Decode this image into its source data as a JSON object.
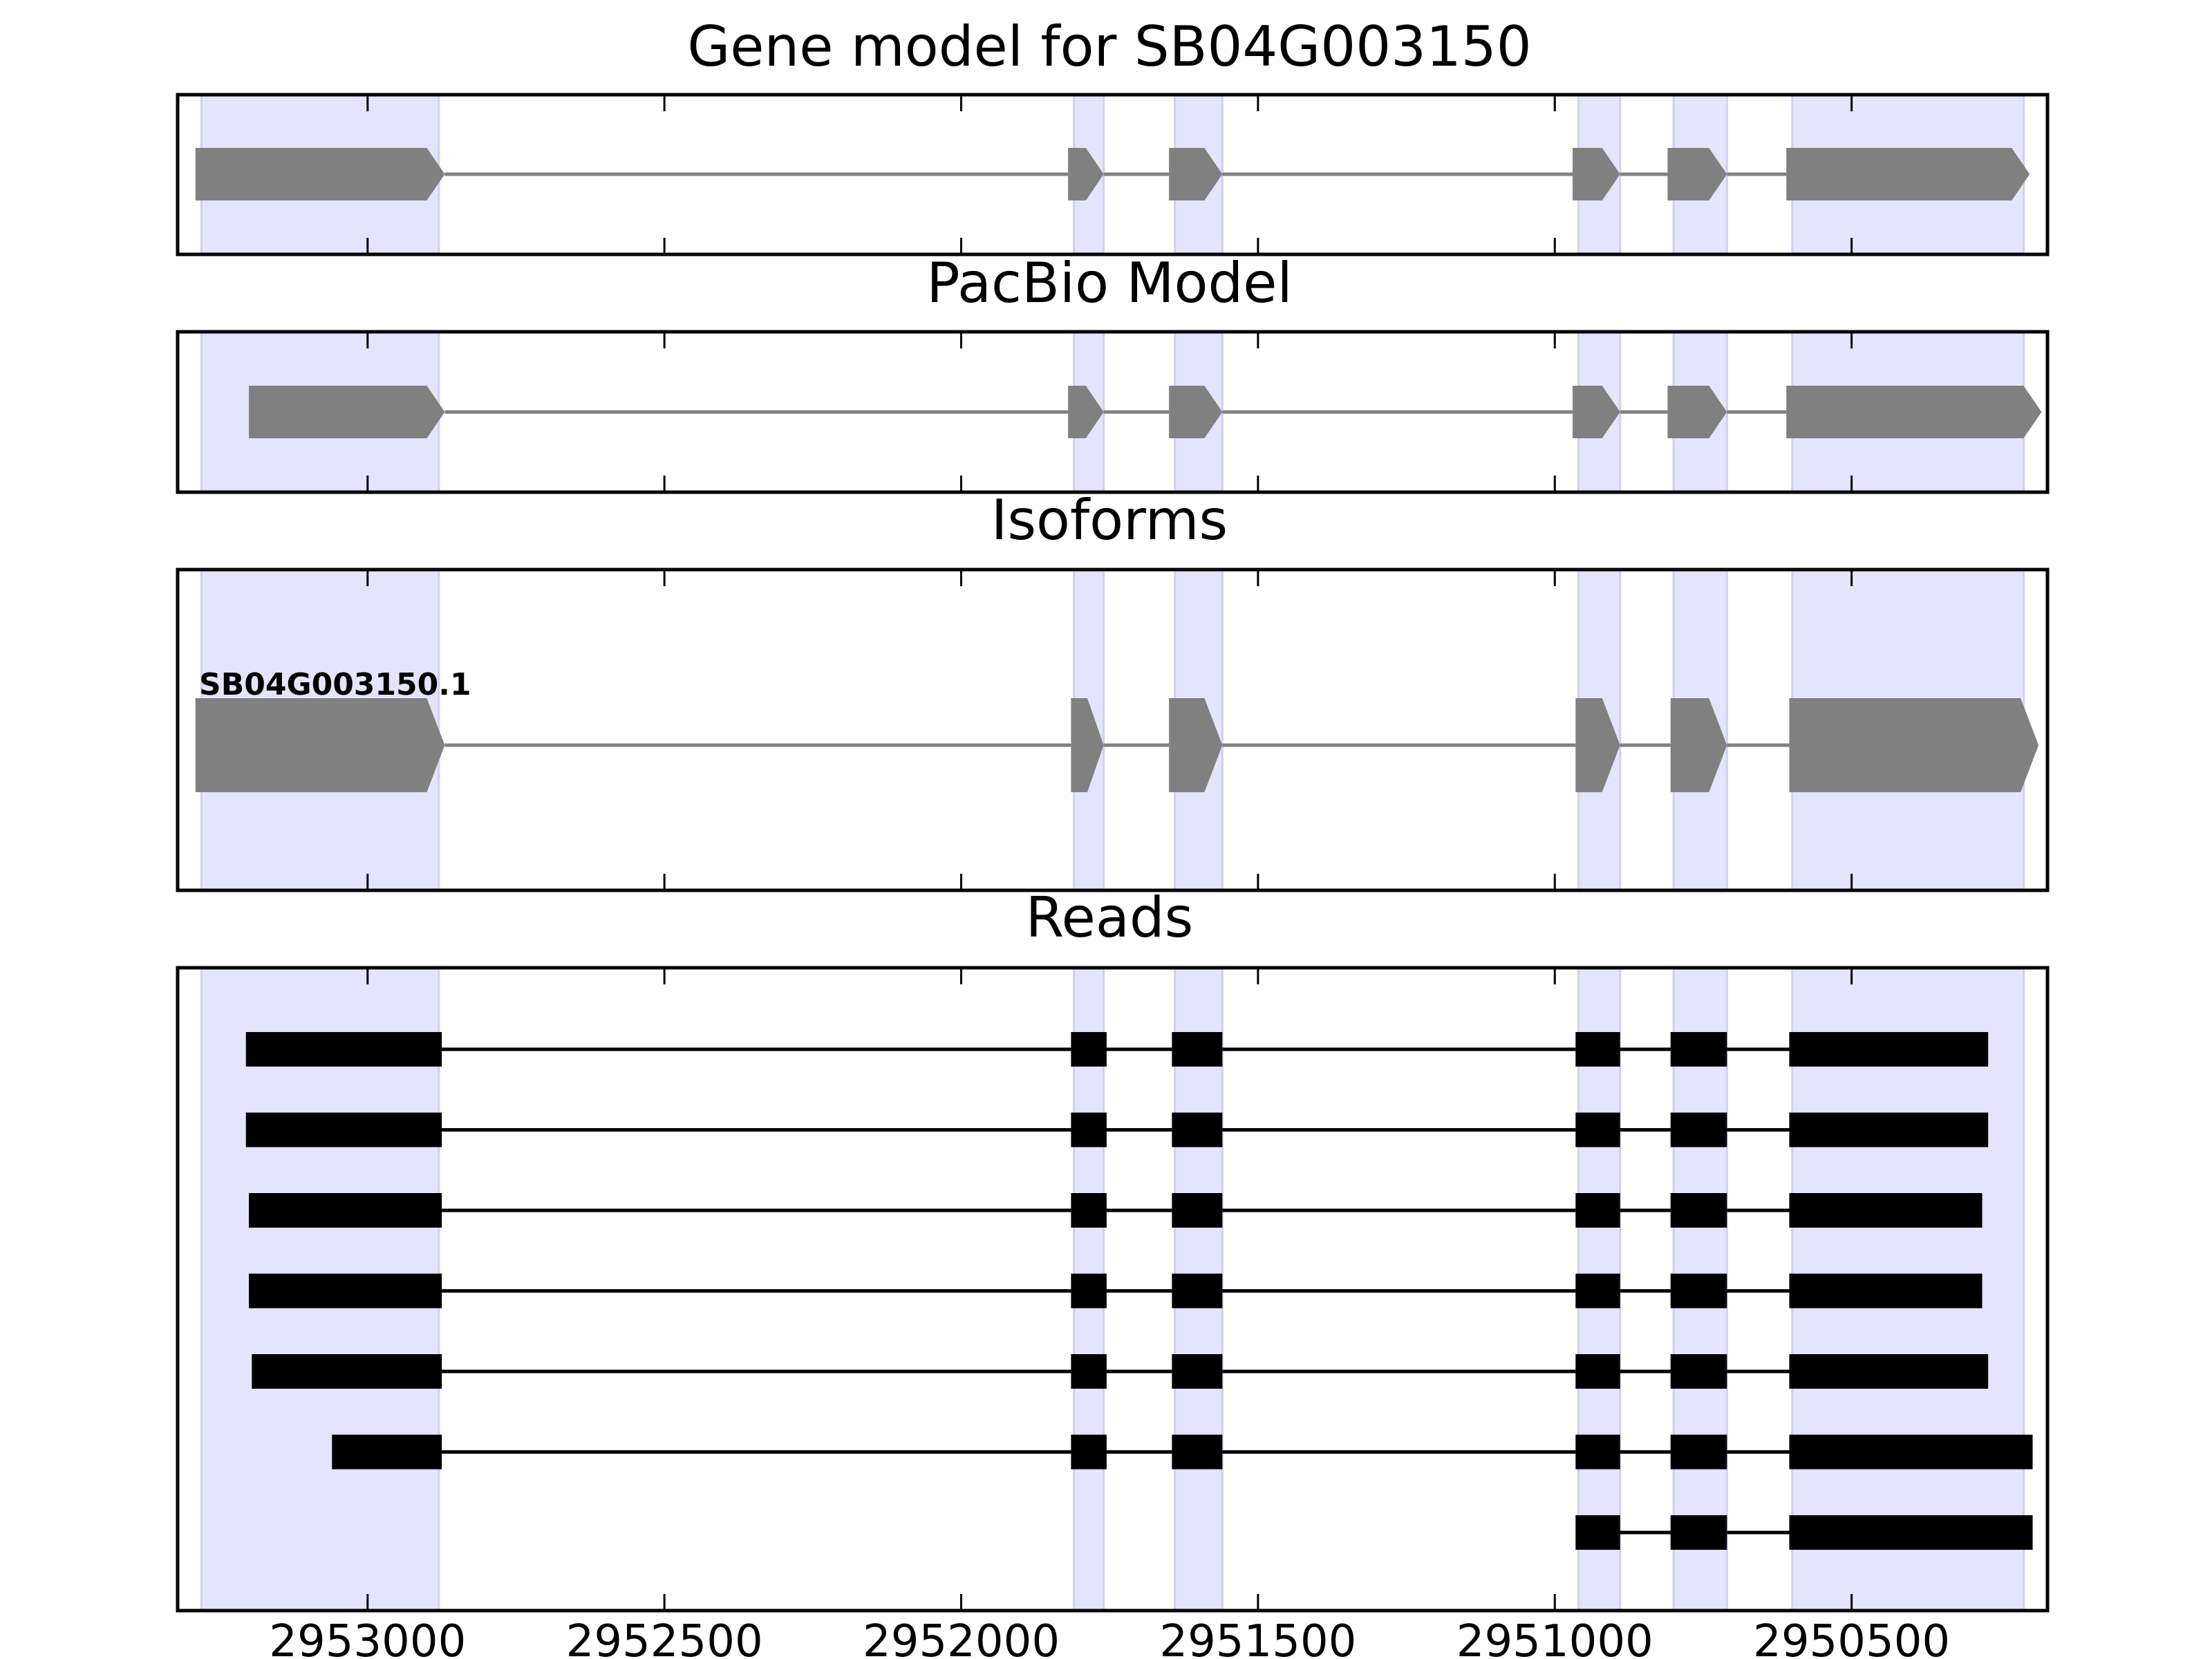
{
  "figure": {
    "panels": [
      {
        "id": "gene-model",
        "title": "Gene model for SB04G003150"
      },
      {
        "id": "pacbio-model",
        "title": "PacBio Model"
      },
      {
        "id": "isoforms",
        "title": "Isoforms"
      },
      {
        "id": "reads",
        "title": "Reads"
      }
    ]
  },
  "chart_data": {
    "type": "gene-structure",
    "x_axis": {
      "reversed": true,
      "range": [
        2953320,
        2950170
      ],
      "ticks": [
        2953000,
        2952500,
        2952000,
        2951500,
        2951000,
        2950500
      ]
    },
    "highlight_regions": [
      [
        2953280,
        2952880
      ],
      [
        2951810,
        2951760
      ],
      [
        2951640,
        2951560
      ],
      [
        2950960,
        2950890
      ],
      [
        2950800,
        2950710
      ],
      [
        2950600,
        2950210
      ]
    ],
    "gene_model": {
      "intron_color": "#808080",
      "exon_color": "#808080",
      "exons": [
        [
          2953290,
          2952870
        ],
        [
          2951820,
          2951760
        ],
        [
          2951650,
          2951560
        ],
        [
          2950970,
          2950890
        ],
        [
          2950810,
          2950710
        ],
        [
          2950610,
          2950200
        ]
      ]
    },
    "pacbio_model": {
      "exons": [
        [
          2953200,
          2952870
        ],
        [
          2951820,
          2951760
        ],
        [
          2951650,
          2951560
        ],
        [
          2950970,
          2950890
        ],
        [
          2950810,
          2950710
        ],
        [
          2950610,
          2950180
        ]
      ]
    },
    "isoforms": [
      {
        "name": "SB04G003150.1",
        "exons": [
          [
            2953290,
            2952870
          ],
          [
            2951815,
            2951760
          ],
          [
            2951650,
            2951560
          ],
          [
            2950965,
            2950890
          ],
          [
            2950805,
            2950710
          ],
          [
            2950605,
            2950185
          ]
        ]
      }
    ],
    "reads": [
      {
        "exons": [
          [
            2953205,
            2952875
          ],
          [
            2951815,
            2951755
          ],
          [
            2951645,
            2951560
          ],
          [
            2950965,
            2950890
          ],
          [
            2950805,
            2950710
          ],
          [
            2950605,
            2950270
          ]
        ]
      },
      {
        "exons": [
          [
            2953205,
            2952875
          ],
          [
            2951815,
            2951755
          ],
          [
            2951645,
            2951560
          ],
          [
            2950965,
            2950890
          ],
          [
            2950805,
            2950710
          ],
          [
            2950605,
            2950270
          ]
        ]
      },
      {
        "exons": [
          [
            2953200,
            2952875
          ],
          [
            2951815,
            2951755
          ],
          [
            2951645,
            2951560
          ],
          [
            2950965,
            2950890
          ],
          [
            2950805,
            2950710
          ],
          [
            2950605,
            2950280
          ]
        ]
      },
      {
        "exons": [
          [
            2953200,
            2952875
          ],
          [
            2951815,
            2951755
          ],
          [
            2951645,
            2951560
          ],
          [
            2950965,
            2950890
          ],
          [
            2950805,
            2950710
          ],
          [
            2950605,
            2950280
          ]
        ]
      },
      {
        "exons": [
          [
            2953195,
            2952875
          ],
          [
            2951815,
            2951755
          ],
          [
            2951645,
            2951560
          ],
          [
            2950965,
            2950890
          ],
          [
            2950805,
            2950710
          ],
          [
            2950605,
            2950270
          ]
        ]
      },
      {
        "exons": [
          [
            2953060,
            2952875
          ],
          [
            2951815,
            2951755
          ],
          [
            2951645,
            2951560
          ],
          [
            2950965,
            2950890
          ],
          [
            2950805,
            2950710
          ],
          [
            2950605,
            2950195
          ]
        ]
      },
      {
        "exons": [
          [
            2950965,
            2950890
          ],
          [
            2950805,
            2950710
          ],
          [
            2950605,
            2950195
          ]
        ]
      }
    ],
    "colors": {
      "highlight": "#e4e4fc",
      "highlight_edge": "#d0d0ee",
      "model_fill": "#808080",
      "read_fill": "#000000",
      "axes": "#000000"
    }
  }
}
